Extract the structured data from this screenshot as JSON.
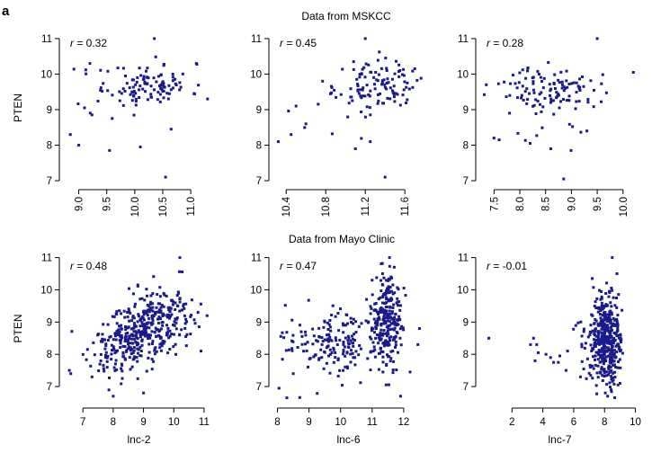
{
  "figure": {
    "panel_letter": "a",
    "sections": [
      "Data from MSKCC",
      "Data from Mayo Clinic"
    ]
  },
  "colors": {
    "points": "#1a1a8c",
    "axes": "#000000"
  },
  "chart_data": [
    {
      "type": "scatter",
      "dataset": "MSKCC",
      "ylabel": "PTEN",
      "xlabel": "",
      "r_label": "r = 0.32",
      "xlim": [
        8.75,
        11.4
      ],
      "ylim": [
        6.9,
        11.2
      ],
      "xticks": [
        9.0,
        9.5,
        10.0,
        10.5,
        11.0
      ],
      "yticks": [
        7,
        8,
        9,
        10,
        11
      ],
      "x_tick_rotation": -90,
      "points": {
        "seed": 11,
        "clusters": [
          {
            "n": 95,
            "mx": 10.3,
            "sx": 0.35,
            "my": 9.72,
            "sy": 0.28
          },
          {
            "n": 25,
            "mx": 9.7,
            "sx": 0.55,
            "my": 9.3,
            "sy": 0.55
          }
        ],
        "extra": [
          [
            8.85,
            8.3
          ],
          [
            9.2,
            10.3
          ],
          [
            10.55,
            7.1
          ],
          [
            10.35,
            11.0
          ],
          [
            9.0,
            8.0
          ],
          [
            9.55,
            7.85
          ],
          [
            10.1,
            7.95
          ],
          [
            10.65,
            8.45
          ],
          [
            11.3,
            9.3
          ],
          [
            11.1,
            10.3
          ]
        ]
      }
    },
    {
      "type": "scatter",
      "dataset": "MSKCC",
      "ylabel": "",
      "xlabel": "",
      "r_label": "r = 0.45",
      "xlim": [
        10.28,
        11.78
      ],
      "ylim": [
        6.9,
        11.2
      ],
      "xticks": [
        10.4,
        10.8,
        11.2,
        11.6
      ],
      "yticks": [
        7,
        8,
        9,
        10,
        11
      ],
      "x_tick_rotation": -90,
      "points": {
        "seed": 23,
        "clusters": [
          {
            "n": 95,
            "mx": 11.35,
            "sx": 0.18,
            "my": 9.7,
            "sy": 0.3
          },
          {
            "n": 25,
            "mx": 10.95,
            "sx": 0.25,
            "my": 9.2,
            "sy": 0.45
          }
        ],
        "extra": [
          [
            10.32,
            8.1
          ],
          [
            10.45,
            8.3
          ],
          [
            10.5,
            9.1
          ],
          [
            11.4,
            7.1
          ],
          [
            11.2,
            11.0
          ],
          [
            11.1,
            7.9
          ],
          [
            11.25,
            8.1
          ],
          [
            11.55,
            10.1
          ],
          [
            11.7,
            10.15
          ],
          [
            10.6,
            8.6
          ]
        ]
      }
    },
    {
      "type": "scatter",
      "dataset": "MSKCC",
      "ylabel": "",
      "xlabel": "",
      "r_label": "r = 0.28",
      "xlim": [
        7.25,
        10.3
      ],
      "ylim": [
        6.9,
        11.2
      ],
      "xticks": [
        7.5,
        8.0,
        8.5,
        9.0,
        9.5,
        10.0
      ],
      "yticks": [
        7,
        8,
        9,
        10,
        11
      ],
      "x_tick_rotation": -90,
      "points": {
        "seed": 37,
        "clusters": [
          {
            "n": 100,
            "mx": 8.65,
            "sx": 0.45,
            "my": 9.6,
            "sy": 0.3
          },
          {
            "n": 20,
            "mx": 8.3,
            "sx": 0.6,
            "my": 8.9,
            "sy": 0.55
          }
        ],
        "extra": [
          [
            7.35,
            9.7
          ],
          [
            7.5,
            8.2
          ],
          [
            7.6,
            8.15
          ],
          [
            8.85,
            7.05
          ],
          [
            9.5,
            11.0
          ],
          [
            10.2,
            10.05
          ],
          [
            8.6,
            7.9
          ],
          [
            8.2,
            8.05
          ],
          [
            9.3,
            8.4
          ],
          [
            7.8,
            8.9
          ]
        ]
      }
    },
    {
      "type": "scatter",
      "dataset": "Mayo Clinic",
      "ylabel": "PTEN",
      "xlabel": "lnc-2",
      "r_label": "r = 0.48",
      "xlim": [
        6.4,
        11.3
      ],
      "ylim": [
        6.5,
        11.1
      ],
      "xticks": [
        7,
        8,
        9,
        10,
        11
      ],
      "yticks": [
        7,
        8,
        9,
        10,
        11
      ],
      "x_tick_rotation": 0,
      "points": {
        "seed": 51,
        "clusters": [
          {
            "n": 380,
            "mx": 8.9,
            "sx": 0.75,
            "my": 8.6,
            "sy": 0.6,
            "corr": 0.5
          },
          {
            "n": 60,
            "mx": 9.8,
            "sx": 0.5,
            "my": 9.3,
            "sy": 0.5
          }
        ],
        "extra": [
          [
            6.55,
            7.5
          ],
          [
            6.6,
            7.4
          ],
          [
            10.2,
            11.0
          ],
          [
            10.8,
            9.3
          ],
          [
            11.1,
            9.2
          ],
          [
            8.0,
            6.7
          ],
          [
            7.3,
            7.3
          ],
          [
            9.0,
            6.8
          ],
          [
            7.6,
            8.4
          ],
          [
            10.9,
            8.1
          ]
        ]
      }
    },
    {
      "type": "scatter",
      "dataset": "Mayo Clinic",
      "ylabel": "",
      "xlabel": "lnc-6",
      "r_label": "r = 0.47",
      "xlim": [
        7.9,
        12.6
      ],
      "ylim": [
        6.5,
        11.1
      ],
      "xticks": [
        8,
        9,
        10,
        11,
        12
      ],
      "yticks": [
        7,
        8,
        9,
        10,
        11
      ],
      "x_tick_rotation": 0,
      "points": {
        "seed": 67,
        "clusters": [
          {
            "n": 230,
            "mx": 11.45,
            "sx": 0.22,
            "my": 8.95,
            "sy": 0.7
          },
          {
            "n": 190,
            "mx": 9.9,
            "sx": 0.8,
            "my": 8.35,
            "sy": 0.5
          }
        ],
        "extra": [
          [
            8.05,
            6.95
          ],
          [
            8.3,
            6.65
          ],
          [
            8.5,
            7.4
          ],
          [
            11.55,
            11.0
          ],
          [
            11.7,
            10.7
          ],
          [
            12.5,
            8.8
          ],
          [
            12.45,
            8.3
          ],
          [
            11.9,
            6.7
          ],
          [
            11.0,
            10.3
          ],
          [
            11.6,
            10.4
          ]
        ]
      }
    },
    {
      "type": "scatter",
      "dataset": "Mayo Clinic",
      "ylabel": "",
      "xlabel": "lnc-7",
      "r_label": "r = -0.01",
      "xlim": [
        0.0,
        10.2
      ],
      "ylim": [
        6.5,
        11.1
      ],
      "xticks": [
        2,
        4,
        6,
        8,
        10
      ],
      "yticks": [
        7,
        8,
        9,
        10,
        11
      ],
      "x_tick_rotation": 0,
      "points": {
        "seed": 79,
        "clusters": [
          {
            "n": 420,
            "mx": 8.1,
            "sx": 0.5,
            "my": 8.5,
            "sy": 0.7
          },
          {
            "n": 25,
            "mx": 6.9,
            "sx": 0.5,
            "my": 8.3,
            "sy": 0.5
          }
        ],
        "extra": [
          [
            0.5,
            8.5
          ],
          [
            3.2,
            8.3
          ],
          [
            3.4,
            8.5
          ],
          [
            3.6,
            8.3
          ],
          [
            3.5,
            7.8
          ],
          [
            3.7,
            8.05
          ],
          [
            4.5,
            7.9
          ],
          [
            4.7,
            7.75
          ],
          [
            5.0,
            7.75
          ],
          [
            5.1,
            7.95
          ],
          [
            5.5,
            7.5
          ],
          [
            5.6,
            8.1
          ],
          [
            4.2,
            8.0
          ],
          [
            8.5,
            11.0
          ],
          [
            8.8,
            10.5
          ],
          [
            8.2,
            6.7
          ],
          [
            9.0,
            7.1
          ]
        ]
      }
    }
  ]
}
